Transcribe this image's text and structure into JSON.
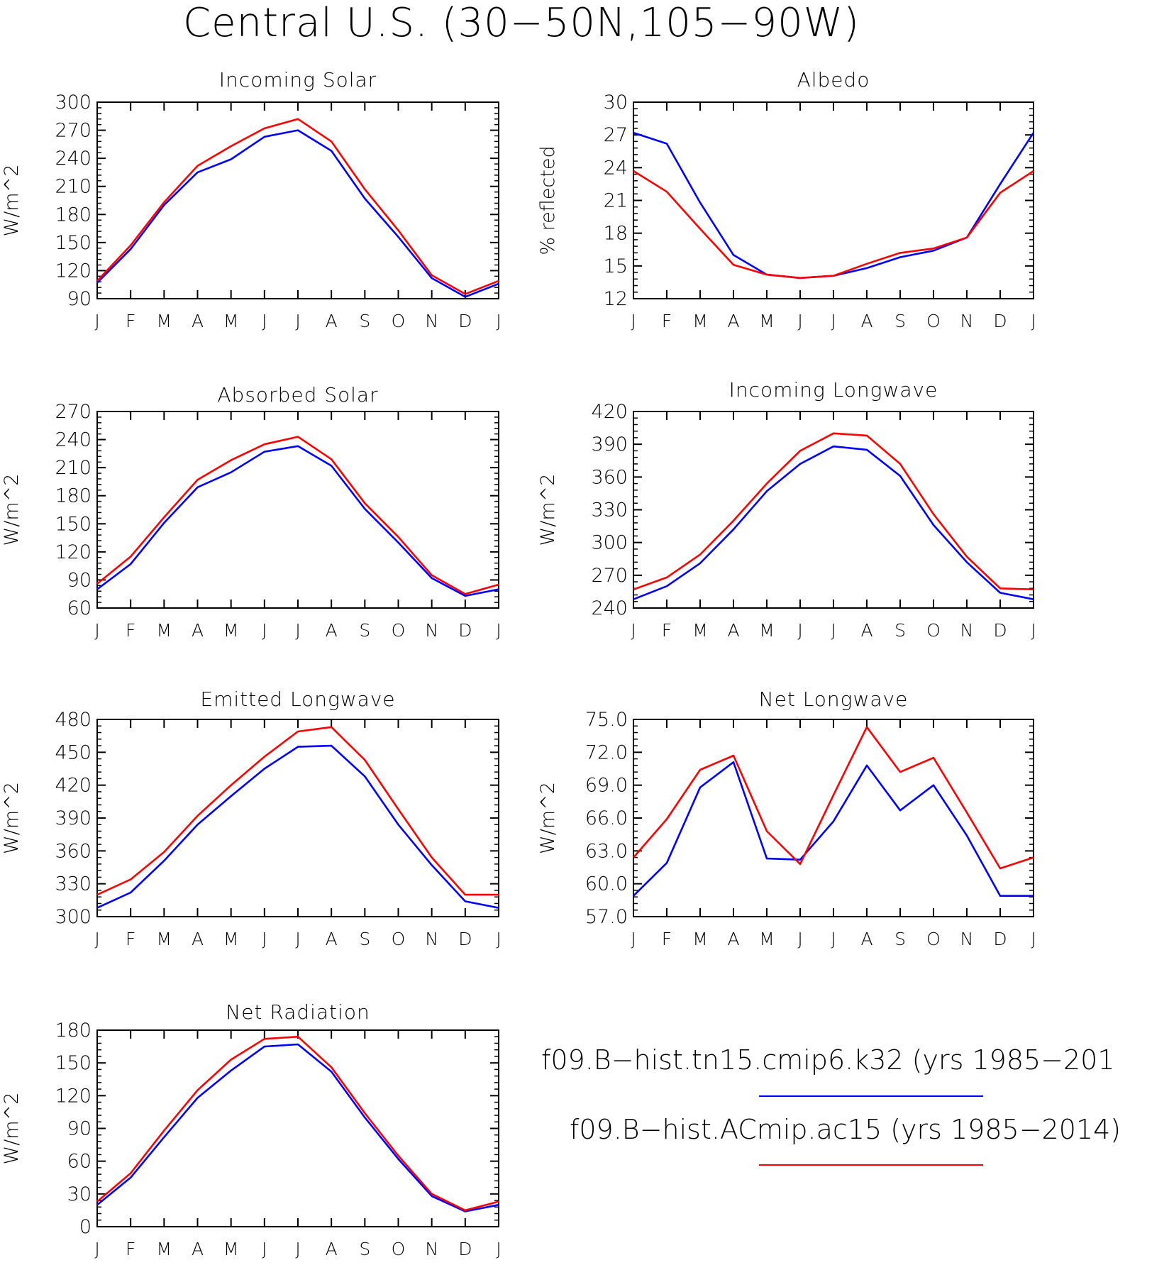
{
  "title": "Central U.S. (30−50N,105−90W)",
  "legend": [
    {
      "label": "f09.B−hist.tn15.cmip6.k32 (yrs 1985−201",
      "color": "#0000ff"
    },
    {
      "label": "f09.B−hist.ACmip.ac15 (yrs 1985−2014)",
      "color": "#ff0000"
    }
  ],
  "chart_data": [
    {
      "type": "line",
      "title": "Incoming Solar",
      "ylabel": "W/m^2",
      "ylim": [
        90,
        300
      ],
      "yticks": [
        "90",
        "120",
        "150",
        "180",
        "210",
        "240",
        "270",
        "300"
      ],
      "categories": [
        "J",
        "F",
        "M",
        "A",
        "M",
        "J",
        "J",
        "A",
        "S",
        "O",
        "N",
        "D",
        "J"
      ],
      "series": [
        {
          "color": "#0000ff",
          "values": [
            107,
            143,
            190,
            225,
            239,
            263,
            270,
            248,
            197,
            156,
            112,
            92,
            106
          ]
        },
        {
          "color": "#ff0000",
          "values": [
            109,
            147,
            193,
            232,
            253,
            272,
            282,
            258,
            207,
            163,
            115,
            95,
            109
          ]
        }
      ]
    },
    {
      "type": "line",
      "title": "Albedo",
      "ylabel": "% reflected",
      "ylim": [
        12,
        30
      ],
      "yticks": [
        "12",
        "15",
        "18",
        "21",
        "24",
        "27",
        "30"
      ],
      "categories": [
        "J",
        "F",
        "M",
        "A",
        "M",
        "J",
        "J",
        "A",
        "S",
        "O",
        "N",
        "D",
        "J"
      ],
      "series": [
        {
          "color": "#0000ff",
          "values": [
            27.2,
            26.2,
            20.8,
            16.0,
            14.2,
            13.9,
            14.1,
            14.8,
            15.8,
            16.4,
            17.6,
            22.5,
            27.2
          ]
        },
        {
          "color": "#ff0000",
          "values": [
            23.7,
            21.8,
            18.4,
            15.1,
            14.2,
            13.9,
            14.1,
            15.2,
            16.2,
            16.6,
            17.6,
            21.7,
            23.7
          ]
        }
      ]
    },
    {
      "type": "line",
      "title": "Absorbed Solar",
      "ylabel": "W/m^2",
      "ylim": [
        60,
        270
      ],
      "yticks": [
        "60",
        "90",
        "120",
        "150",
        "180",
        "210",
        "240",
        "270"
      ],
      "categories": [
        "J",
        "F",
        "M",
        "A",
        "M",
        "J",
        "J",
        "A",
        "S",
        "O",
        "N",
        "D",
        "J"
      ],
      "series": [
        {
          "color": "#0000ff",
          "values": [
            80,
            107,
            151,
            189,
            205,
            227,
            233,
            212,
            166,
            130,
            92,
            73,
            80
          ]
        },
        {
          "color": "#ff0000",
          "values": [
            86,
            115,
            157,
            197,
            218,
            235,
            243,
            219,
            172,
            136,
            95,
            75,
            85
          ]
        }
      ]
    },
    {
      "type": "line",
      "title": "Incoming Longwave",
      "ylabel": "W/m^2",
      "ylim": [
        240,
        420
      ],
      "yticks": [
        "240",
        "270",
        "300",
        "330",
        "360",
        "390",
        "420"
      ],
      "categories": [
        "J",
        "F",
        "M",
        "A",
        "M",
        "J",
        "J",
        "A",
        "S",
        "O",
        "N",
        "D",
        "J"
      ],
      "series": [
        {
          "color": "#0000ff",
          "values": [
            248,
            260,
            281,
            312,
            347,
            372,
            388,
            385,
            361,
            316,
            282,
            254,
            248
          ]
        },
        {
          "color": "#ff0000",
          "values": [
            257,
            268,
            289,
            320,
            354,
            384,
            400,
            398,
            372,
            326,
            287,
            258,
            257
          ]
        }
      ]
    },
    {
      "type": "line",
      "title": "Emitted Longwave",
      "ylabel": "W/m^2",
      "ylim": [
        300,
        480
      ],
      "yticks": [
        "300",
        "330",
        "360",
        "390",
        "420",
        "450",
        "480"
      ],
      "categories": [
        "J",
        "F",
        "M",
        "A",
        "M",
        "J",
        "J",
        "A",
        "S",
        "O",
        "N",
        "D",
        "J"
      ],
      "series": [
        {
          "color": "#0000ff",
          "values": [
            308,
            322,
            351,
            384,
            410,
            435,
            455,
            456,
            428,
            384,
            347,
            314,
            308
          ]
        },
        {
          "color": "#ff0000",
          "values": [
            320,
            334,
            359,
            392,
            420,
            446,
            469,
            473,
            443,
            398,
            354,
            320,
            320
          ]
        }
      ]
    },
    {
      "type": "line",
      "title": "Net Longwave",
      "ylabel": "W/m^2",
      "ylim": [
        57.0,
        75.0
      ],
      "yticks": [
        "57.0",
        "60.0",
        "63.0",
        "66.0",
        "69.0",
        "72.0",
        "75.0"
      ],
      "categories": [
        "J",
        "F",
        "M",
        "A",
        "M",
        "J",
        "J",
        "A",
        "S",
        "O",
        "N",
        "D",
        "J"
      ],
      "series": [
        {
          "color": "#0000ff",
          "values": [
            58.9,
            61.9,
            68.8,
            71.1,
            62.3,
            62.2,
            65.7,
            70.8,
            66.7,
            69.0,
            64.4,
            58.9,
            58.9
          ]
        },
        {
          "color": "#ff0000",
          "values": [
            62.4,
            65.9,
            70.4,
            71.7,
            64.8,
            61.8,
            68.1,
            74.3,
            70.2,
            71.5,
            66.5,
            61.4,
            62.4
          ]
        }
      ]
    },
    {
      "type": "line",
      "title": "Net Radiation",
      "ylabel": "W/m^2",
      "ylim": [
        0,
        180
      ],
      "yticks": [
        "0",
        "30",
        "60",
        "90",
        "120",
        "150",
        "180"
      ],
      "categories": [
        "J",
        "F",
        "M",
        "A",
        "M",
        "J",
        "J",
        "A",
        "S",
        "O",
        "N",
        "D",
        "J"
      ],
      "series": [
        {
          "color": "#0000ff",
          "values": [
            20,
            45,
            82,
            118,
            143,
            165,
            167,
            142,
            100,
            62,
            28,
            14,
            20
          ]
        },
        {
          "color": "#ff0000",
          "values": [
            23,
            49,
            88,
            125,
            153,
            172,
            174,
            146,
            104,
            65,
            30,
            15,
            23
          ]
        }
      ]
    }
  ]
}
